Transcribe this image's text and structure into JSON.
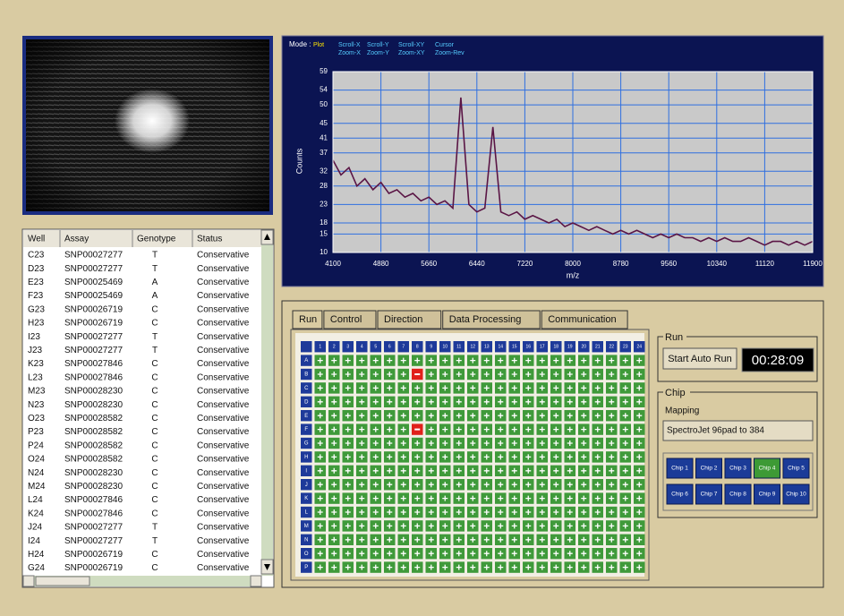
{
  "table": {
    "columns": [
      "Well",
      "Assay",
      "Genotype",
      "Status"
    ],
    "rows": [
      [
        "C23",
        "SNP00027277",
        "T",
        "Conservative"
      ],
      [
        "D23",
        "SNP00027277",
        "T",
        "Conservative"
      ],
      [
        "E23",
        "SNP00025469",
        "A",
        "Conservative"
      ],
      [
        "F23",
        "SNP00025469",
        "A",
        "Conservative"
      ],
      [
        "G23",
        "SNP00026719",
        "C",
        "Conservative"
      ],
      [
        "H23",
        "SNP00026719",
        "C",
        "Conservative"
      ],
      [
        "I23",
        "SNP00027277",
        "T",
        "Conservative"
      ],
      [
        "J23",
        "SNP00027277",
        "T",
        "Conservative"
      ],
      [
        "K23",
        "SNP00027846",
        "C",
        "Conservative"
      ],
      [
        "L23",
        "SNP00027846",
        "C",
        "Conservative"
      ],
      [
        "M23",
        "SNP00028230",
        "C",
        "Conservative"
      ],
      [
        "N23",
        "SNP00028230",
        "C",
        "Conservative"
      ],
      [
        "O23",
        "SNP00028582",
        "C",
        "Conservative"
      ],
      [
        "P23",
        "SNP00028582",
        "C",
        "Conservative"
      ],
      [
        "P24",
        "SNP00028582",
        "C",
        "Conservative"
      ],
      [
        "O24",
        "SNP00028582",
        "C",
        "Conservative"
      ],
      [
        "N24",
        "SNP00028230",
        "C",
        "Conservative"
      ],
      [
        "M24",
        "SNP00028230",
        "C",
        "Conservative"
      ],
      [
        "L24",
        "SNP00027846",
        "C",
        "Conservative"
      ],
      [
        "K24",
        "SNP00027846",
        "C",
        "Conservative"
      ],
      [
        "J24",
        "SNP00027277",
        "T",
        "Conservative"
      ],
      [
        "I24",
        "SNP00027277",
        "T",
        "Conservative"
      ],
      [
        "H24",
        "SNP00026719",
        "C",
        "Conservative"
      ],
      [
        "G24",
        "SNP00026719",
        "C",
        "Conservative"
      ]
    ]
  },
  "chart_data": {
    "type": "line",
    "mode_label": "Mode :",
    "modes": [
      "Plot",
      "Scroll-X",
      "Scroll-Y",
      "Scroll-XY",
      "Cursor",
      "Zoom-X",
      "Zoom-Y",
      "Zoom-XY",
      "Zoom-Rev"
    ],
    "x_label": "m/z",
    "y_label": "Counts",
    "color": "#5a1545",
    "grid": true,
    "xlim": [
      4100,
      11900
    ],
    "ylim": [
      10,
      59
    ],
    "xticks": [
      4100,
      4880,
      5660,
      6440,
      7220,
      8000,
      8780,
      9560,
      10340,
      11120,
      11900
    ],
    "yticks": [
      10,
      15,
      18,
      23,
      28,
      32,
      37,
      41,
      45,
      50,
      54,
      59
    ],
    "x": [
      4100,
      4230,
      4360,
      4490,
      4620,
      4750,
      4880,
      5010,
      5140,
      5270,
      5400,
      5530,
      5660,
      5790,
      5920,
      6050,
      6180,
      6310,
      6440,
      6570,
      6700,
      6830,
      6960,
      7090,
      7220,
      7350,
      7480,
      7610,
      7740,
      7870,
      8000,
      8130,
      8260,
      8390,
      8520,
      8650,
      8780,
      8910,
      9040,
      9170,
      9300,
      9430,
      9560,
      9690,
      9820,
      9950,
      10080,
      10210,
      10340,
      10470,
      10600,
      10730,
      10860,
      10990,
      11120,
      11250,
      11380,
      11510,
      11640,
      11770,
      11900
    ],
    "values": [
      35,
      31,
      33,
      28,
      30,
      27,
      29,
      26,
      27,
      25,
      26,
      24,
      25,
      23,
      24,
      22,
      52,
      23,
      21,
      22,
      44,
      21,
      20,
      21,
      19,
      20,
      19,
      18,
      19,
      17,
      18,
      17,
      16,
      17,
      16,
      15,
      16,
      15,
      16,
      15,
      14,
      15,
      14,
      15,
      14,
      14,
      13,
      14,
      13,
      14,
      13,
      13,
      14,
      13,
      12,
      13,
      13,
      12,
      13,
      12,
      13
    ]
  },
  "tabs": [
    "Run",
    "Control",
    "Direction",
    "Data Processing",
    "Communication"
  ],
  "plate": {
    "columns": [
      "1",
      "2",
      "3",
      "4",
      "5",
      "6",
      "7",
      "8",
      "9",
      "10",
      "11",
      "12",
      "13",
      "14",
      "15",
      "16",
      "17",
      "18",
      "19",
      "20",
      "21",
      "22",
      "23",
      "24"
    ],
    "rows": [
      "A",
      "B",
      "C",
      "D",
      "E",
      "F",
      "G",
      "H",
      "I",
      "J",
      "K",
      "L",
      "M",
      "N",
      "O",
      "P"
    ],
    "marked_wells": [
      [
        1,
        7
      ],
      [
        5,
        7
      ]
    ],
    "well_color": "#3f9a3a",
    "marked_color": "#e0201a"
  },
  "run": {
    "title": "Run",
    "button": "Start Auto Run",
    "timer": "00:28:09"
  },
  "chip": {
    "title": "Chip",
    "mapping_label": "Mapping",
    "mapping": "SpectroJet 96pad to 384",
    "buttons": [
      "Chip 1",
      "Chip 2",
      "Chip 3",
      "Chip 4",
      "Chip 5",
      "Chip 6",
      "Chip 7",
      "Chip 8",
      "Chip 9",
      "Chip 10"
    ],
    "selected": 3
  }
}
